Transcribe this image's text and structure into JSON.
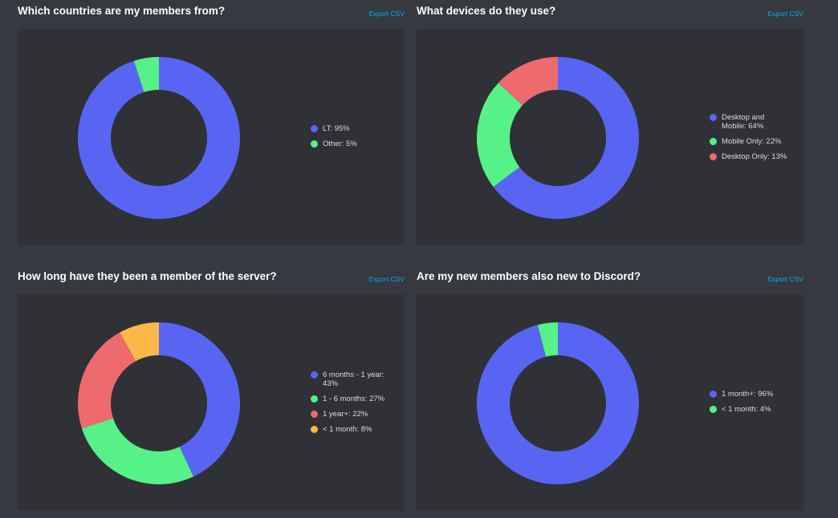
{
  "colors": {
    "blurple": "#5865f2",
    "green": "#57f287",
    "red": "#ed6a6e",
    "yellow": "#fbb848"
  },
  "export_label": "Export CSV",
  "chart_data": [
    {
      "type": "pie",
      "title": "Which countries are my members from?",
      "slices": [
        {
          "label": "LT: 95%",
          "value": 95,
          "color": "#5865f2"
        },
        {
          "label": "Other: 5%",
          "value": 5,
          "color": "#57f287"
        }
      ]
    },
    {
      "type": "pie",
      "title": "What devices do they use?",
      "slices": [
        {
          "label": "Desktop and Mobile: 64%",
          "value": 64,
          "color": "#5865f2"
        },
        {
          "label": "Mobile Only: 22%",
          "value": 22,
          "color": "#57f287"
        },
        {
          "label": "Desktop Only: 13%",
          "value": 13,
          "color": "#ed6a6e"
        }
      ]
    },
    {
      "type": "pie",
      "title": "How long have they been a member of the server?",
      "slices": [
        {
          "label": "6 months - 1 year: 43%",
          "value": 43,
          "color": "#5865f2"
        },
        {
          "label": "1 - 6 months: 27%",
          "value": 27,
          "color": "#57f287"
        },
        {
          "label": "1 year+: 22%",
          "value": 22,
          "color": "#ed6a6e"
        },
        {
          "label": "< 1 month: 8%",
          "value": 8,
          "color": "#fbb848"
        }
      ]
    },
    {
      "type": "pie",
      "title": "Are my new members also new to Discord?",
      "slices": [
        {
          "label": "1 month+: 96%",
          "value": 96,
          "color": "#5865f2"
        },
        {
          "label": "< 1 month: 4%",
          "value": 4,
          "color": "#57f287"
        }
      ]
    }
  ]
}
